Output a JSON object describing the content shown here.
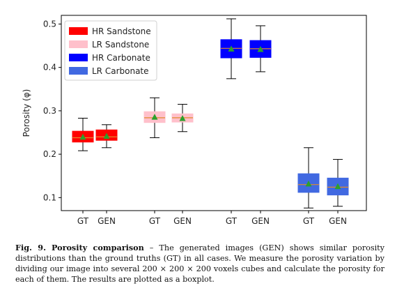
{
  "chart_data": {
    "type": "box",
    "ylabel": "Porosity (φ)",
    "ylim": [
      0.07,
      0.52
    ],
    "yticks": [
      "0.1",
      "0.2",
      "0.3",
      "0.4",
      "0.5"
    ],
    "ytick_values": [
      0.1,
      0.2,
      0.3,
      0.4,
      0.5
    ],
    "categories": [
      "GT",
      "GEN",
      "GT",
      "GEN",
      "GT",
      "GEN",
      "GT",
      "GEN"
    ],
    "legend": {
      "placement": "top-left",
      "entries": [
        {
          "label": "HR Sandstone",
          "color": "#ff0000"
        },
        {
          "label": "LR Sandstone",
          "color": "#ffc0cb"
        },
        {
          "label": "HR Carbonate",
          "color": "#0000ff"
        },
        {
          "label": "LR Carbonate",
          "color": "#4169e1"
        }
      ]
    },
    "boxes": [
      {
        "group": "HR Sandstone",
        "label": "GT",
        "min": 0.208,
        "q1": 0.228,
        "median": 0.238,
        "q3": 0.253,
        "max": 0.283,
        "mean": 0.24
      },
      {
        "group": "HR Sandstone",
        "label": "GEN",
        "min": 0.215,
        "q1": 0.232,
        "median": 0.24,
        "q3": 0.256,
        "max": 0.268,
        "mean": 0.242
      },
      {
        "group": "LR Sandstone",
        "label": "GT",
        "min": 0.238,
        "q1": 0.273,
        "median": 0.284,
        "q3": 0.298,
        "max": 0.33,
        "mean": 0.286
      },
      {
        "group": "LR Sandstone",
        "label": "GEN",
        "min": 0.252,
        "q1": 0.274,
        "median": 0.284,
        "q3": 0.293,
        "max": 0.315,
        "mean": 0.283
      },
      {
        "group": "HR Carbonate",
        "label": "GT",
        "min": 0.374,
        "q1": 0.422,
        "median": 0.444,
        "q3": 0.464,
        "max": 0.512,
        "mean": 0.443
      },
      {
        "group": "HR Carbonate",
        "label": "GEN",
        "min": 0.39,
        "q1": 0.423,
        "median": 0.443,
        "q3": 0.462,
        "max": 0.496,
        "mean": 0.442
      },
      {
        "group": "LR Carbonate",
        "label": "GT",
        "min": 0.076,
        "q1": 0.112,
        "median": 0.13,
        "q3": 0.155,
        "max": 0.215,
        "mean": 0.132
      },
      {
        "group": "LR Carbonate",
        "label": "GEN",
        "min": 0.08,
        "q1": 0.106,
        "median": 0.124,
        "q3": 0.145,
        "max": 0.188,
        "mean": 0.126
      }
    ],
    "median_color": "#e08a2c",
    "mean_marker_color": "#2ca02c",
    "grid": false
  },
  "caption": {
    "label": "Fig. 9.",
    "title": "Porosity comparison",
    "text": " – The generated images (GEN) shows similar porosity distributions than the ground truths (GT) in all cases. We measure the porosity variation by dividing our image into several 200 × 200 × 200 voxels cubes and calculate the porosity for each of them. The results are plotted as a boxplot."
  }
}
